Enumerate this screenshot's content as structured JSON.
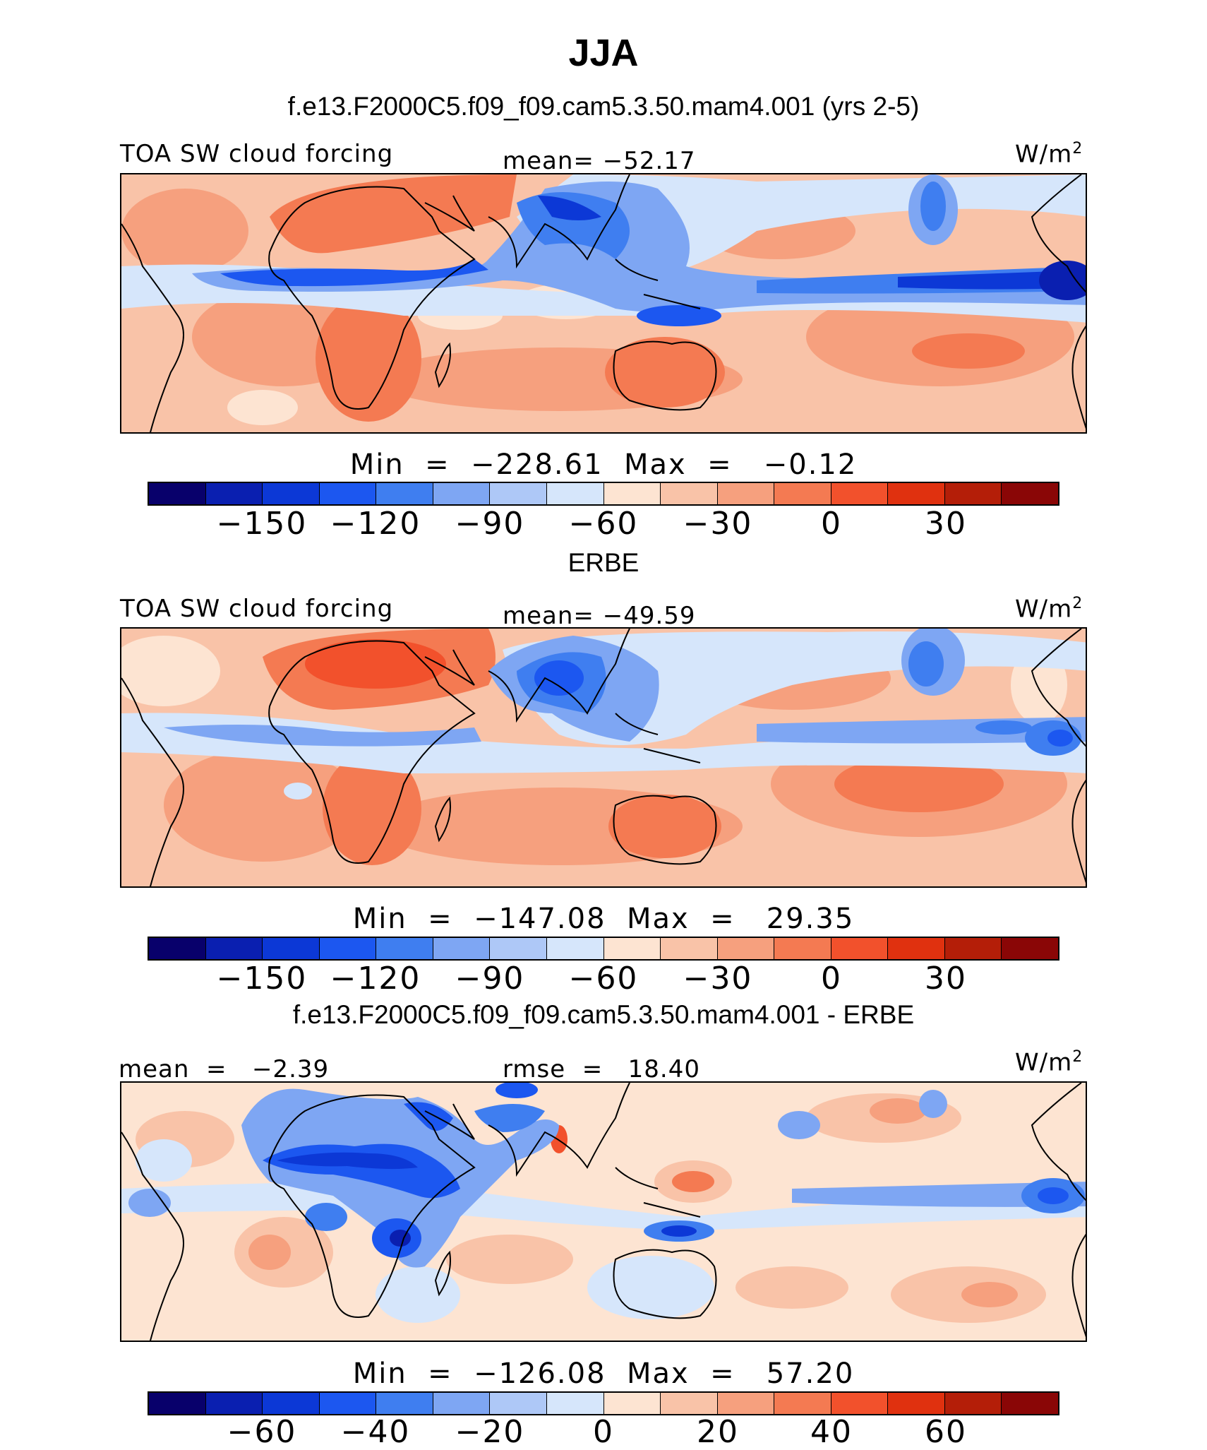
{
  "title": "JJA",
  "palette": [
    "#08006b",
    "#0a1fb0",
    "#0c38d6",
    "#1c57f0",
    "#3f7ef0",
    "#7ea6f3",
    "#aec8f7",
    "#d6e6fb",
    "#fde4d2",
    "#f9c3a8",
    "#f6a07e",
    "#f47a52",
    "#f2512c",
    "#e0310f",
    "#b41e08",
    "#8a0606"
  ],
  "panels": [
    {
      "title": "f.e13.F2000C5.f09_f09.cam5.3.50.mam4.001 (yrs 2-5)",
      "left_label": "TOA SW cloud forcing",
      "center_label": "mean= −52.17",
      "units": "W/m",
      "units_sup": "2",
      "stats": "Min  =  −228.61  Max  =   −0.12",
      "ticks": [
        "−150",
        "−120",
        "−90",
        "−60",
        "−30",
        "0",
        "30"
      ]
    },
    {
      "title": "ERBE",
      "left_label": "TOA SW cloud forcing",
      "center_label": "mean= −49.59",
      "units": "W/m",
      "units_sup": "2",
      "stats": "Min  =  −147.08  Max  =   29.35",
      "ticks": [
        "−150",
        "−120",
        "−90",
        "−60",
        "−30",
        "0",
        "30"
      ]
    },
    {
      "title": "f.e13.F2000C5.f09_f09.cam5.3.50.mam4.001 - ERBE",
      "left_label": "mean  =   −2.39",
      "center_label": "rmse  =   18.40",
      "units": "W/m",
      "units_sup": "2",
      "stats": "Min  =  −126.08  Max  =   57.20",
      "ticks": [
        "−60",
        "−40",
        "−20",
        "0",
        "20",
        "40",
        "60"
      ]
    }
  ]
}
